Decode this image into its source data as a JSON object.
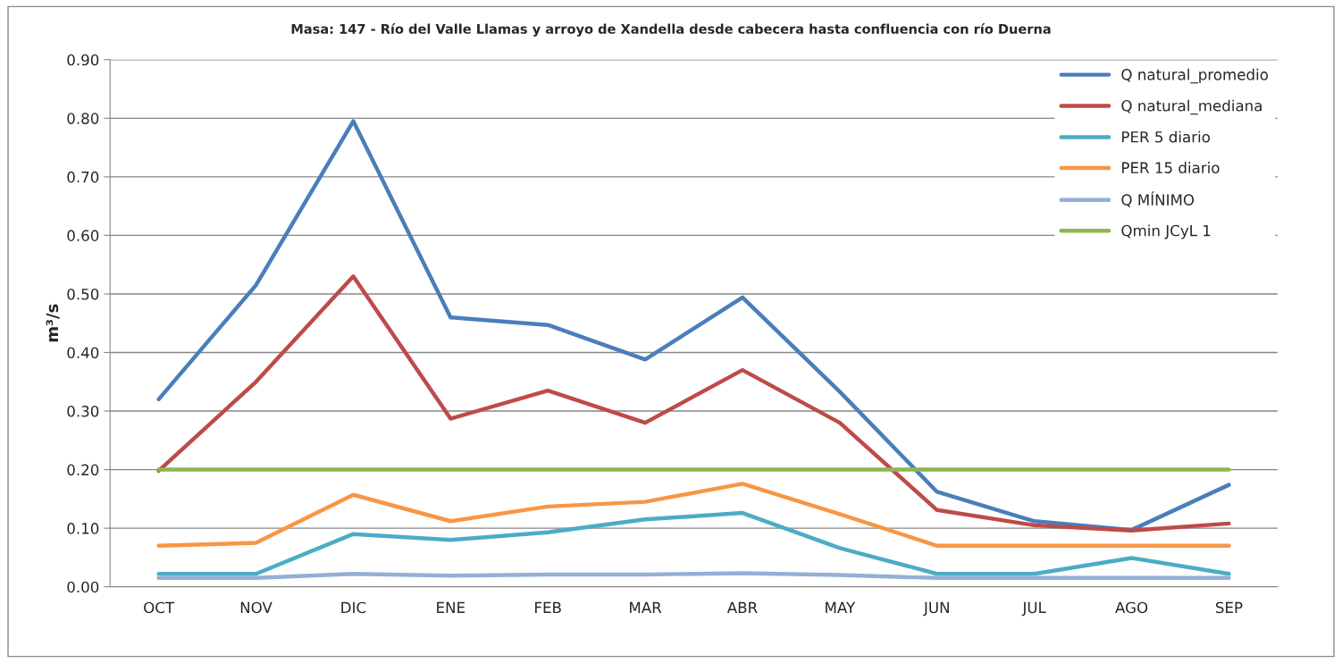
{
  "chart_data": {
    "type": "line",
    "title": "Masa: 147 - Río del Valle Llamas y arroyo de Xandella desde cabecera hasta confluencia con río Duerna",
    "ylabel": "m³/s",
    "categories": [
      "OCT",
      "NOV",
      "DIC",
      "ENE",
      "FEB",
      "MAR",
      "ABR",
      "MAY",
      "JUN",
      "JUL",
      "AGO",
      "SEP"
    ],
    "series": [
      {
        "name": "Q natural_promedio",
        "color": "#4a7ebb",
        "values": [
          0.32,
          0.515,
          0.795,
          0.46,
          0.447,
          0.388,
          0.494,
          0.333,
          0.162,
          0.112,
          0.097,
          0.174
        ]
      },
      {
        "name": "Q natural_mediana",
        "color": "#be4b48",
        "values": [
          0.198,
          0.35,
          0.53,
          0.287,
          0.335,
          0.28,
          0.37,
          0.28,
          0.131,
          0.105,
          0.096,
          0.108
        ]
      },
      {
        "name": "PER 5 diario",
        "color": "#4bacc6",
        "values": [
          0.022,
          0.022,
          0.09,
          0.08,
          0.093,
          0.115,
          0.126,
          0.066,
          0.022,
          0.022,
          0.049,
          0.022
        ]
      },
      {
        "name": "PER 15 diario",
        "color": "#f79646",
        "values": [
          0.07,
          0.075,
          0.157,
          0.112,
          0.137,
          0.145,
          0.176,
          0.124,
          0.07,
          0.07,
          0.07,
          0.07
        ]
      },
      {
        "name": "Q MÍNIMO",
        "color": "#94afd7",
        "values": [
          0.015,
          0.015,
          0.022,
          0.019,
          0.021,
          0.021,
          0.023,
          0.02,
          0.015,
          0.015,
          0.015,
          0.015
        ]
      },
      {
        "name": "Qmin JCyL 1",
        "color": "#8db652",
        "values": [
          0.2,
          0.2,
          0.2,
          0.2,
          0.2,
          0.2,
          0.2,
          0.2,
          0.2,
          0.2,
          0.2,
          0.2
        ]
      }
    ],
    "ylim": [
      0,
      0.9
    ],
    "yticks": [
      {
        "value": 0,
        "label": "0.00"
      },
      {
        "value": 0.1,
        "label": "0.10"
      },
      {
        "value": 0.2,
        "label": "0.20"
      },
      {
        "value": 0.3,
        "label": "0.30"
      },
      {
        "value": 0.4,
        "label": "0.40"
      },
      {
        "value": 0.5,
        "label": "0.50"
      },
      {
        "value": 0.6,
        "label": "0.60"
      },
      {
        "value": 0.7,
        "label": "0.70"
      },
      {
        "value": 0.8,
        "label": "0.80"
      },
      {
        "value": 0.9,
        "label": "0.90"
      }
    ],
    "grid": "y",
    "legend": "top right",
    "marker": "none",
    "line_style": "solid"
  }
}
